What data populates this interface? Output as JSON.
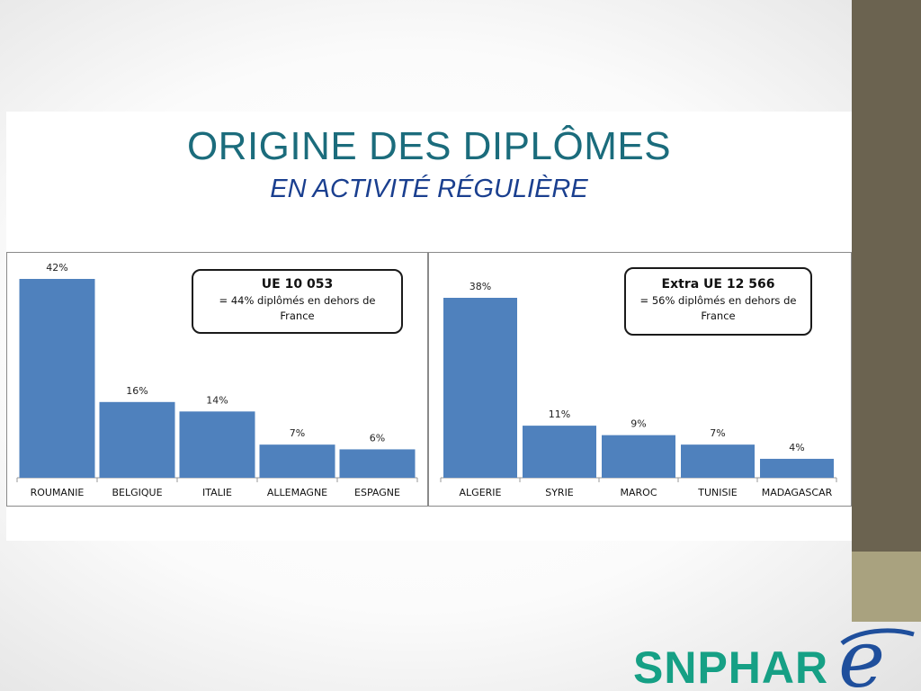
{
  "slide": {
    "title": "ORIGINE DES DIPLÔMES",
    "subtitle": "EN ACTIVITÉ RÉGULIÈRE"
  },
  "callouts": {
    "ue": {
      "head": "UE 10 053",
      "line1": "= 44% diplômés en dehors de",
      "line2": "France"
    },
    "extra": {
      "head": "Extra UE 12 566",
      "line1": "= 56%  diplômés en dehors de",
      "line2": "France"
    }
  },
  "colors": {
    "bar": "#4f81bd",
    "title": "#1b6c7c",
    "subtitle": "#1a3f8f",
    "logo": "#16a085"
  },
  "logo": {
    "text": "SNPHAR",
    "mark": "e"
  },
  "chart_data": [
    {
      "type": "bar",
      "categories": [
        "ROUMANIE",
        "BELGIQUE",
        "ITALIE",
        "ALLEMAGNE",
        "ESPAGNE"
      ],
      "values": [
        42,
        16,
        14,
        7,
        6
      ],
      "labels": [
        "42%",
        "16%",
        "14%",
        "7%",
        "6%"
      ],
      "ylim": [
        0,
        42
      ],
      "grid": false,
      "legend": "none"
    },
    {
      "type": "bar",
      "categories": [
        "ALGERIE",
        "SYRIE",
        "MAROC",
        "TUNISIE",
        "MADAGASCAR"
      ],
      "values": [
        38,
        11,
        9,
        7,
        4
      ],
      "labels": [
        "38%",
        "11%",
        "9%",
        "7%",
        "4%"
      ],
      "ylim": [
        0,
        38
      ],
      "grid": false,
      "legend": "none"
    }
  ]
}
